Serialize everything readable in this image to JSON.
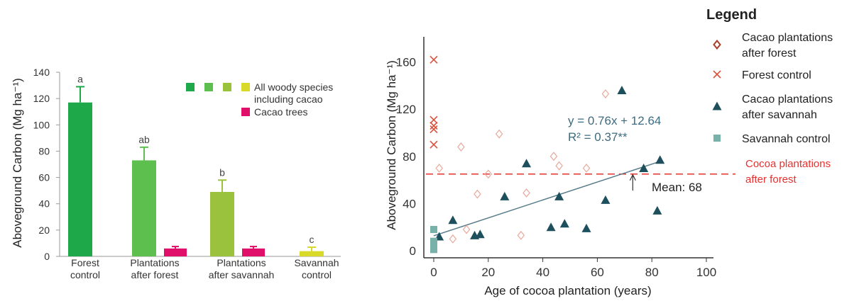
{
  "colors": {
    "forest_green": "#1fa84a",
    "plant_forest_green": "#5cbf4e",
    "plant_savannah_green": "#9bc23c",
    "savannah_yellow": "#d9d92a",
    "cacao_pink": "#e0106a",
    "cacao_forest_diamond": "#e8a89a",
    "forest_control_x": "#d9533c",
    "savannah_triangle": "#1d4f5c",
    "savannah_control_square": "#78b0aa",
    "dashed_red": "#e8302f",
    "regression_line": "#5a7d8a"
  },
  "chart_data": [
    {
      "type": "bar",
      "ylabel": "Aboveground Carbon (Mg ha⁻¹)",
      "ylim": [
        0,
        140
      ],
      "yticks": [
        "0",
        "20",
        "40",
        "60",
        "80",
        "100",
        "120",
        "140"
      ],
      "categories": [
        [
          "Forest",
          "control"
        ],
        [
          "Plantations",
          "after forest"
        ],
        [
          "Plantations",
          "after savannah"
        ],
        [
          "Savannah",
          "control"
        ]
      ],
      "significance_letters": [
        "a",
        "ab",
        "b",
        "c"
      ],
      "series": [
        {
          "name": "All woody species including cacao",
          "values": [
            117,
            73,
            49,
            4
          ],
          "errors": [
            12,
            10,
            9,
            3
          ]
        },
        {
          "name": "Cacao trees",
          "values": [
            null,
            6,
            6,
            null
          ],
          "errors": [
            null,
            1.5,
            1.5,
            null
          ]
        }
      ],
      "legend": [
        {
          "label_lines": [
            "All woody species",
            "including cacao"
          ]
        },
        {
          "label_lines": [
            "Cacao trees"
          ]
        }
      ]
    },
    {
      "type": "scatter",
      "xlabel": "Age of cocoa plantation (years)",
      "ylabel": "Aboveground Carbon (Mg ha⁻¹)",
      "xlim": [
        -1,
        103
      ],
      "ylim": [
        -4,
        172
      ],
      "xticks": [
        "0",
        "20",
        "40",
        "60",
        "80",
        "100"
      ],
      "yticks": [
        "0",
        "40",
        "80",
        "120",
        "160"
      ],
      "equation": "y = 0.76x + 12.64",
      "r2": "R² = 0.37**",
      "mean_label": "Mean: 68",
      "dashed_label_lines": [
        "Cocoa plantations",
        "after forest"
      ],
      "dashed_y": 65,
      "regression": {
        "slope": 0.76,
        "intercept": 12.64,
        "x_start": 0,
        "x_end": 83
      },
      "mean_arrow": {
        "x": 73,
        "y_from": 51,
        "y_to": 65
      },
      "legend_title": "Legend",
      "series": [
        {
          "name": "Cacao plantations after forest",
          "legend_lines": [
            "Cacao plantations",
            "after forest"
          ],
          "marker": "diamond",
          "points": [
            [
              2,
              70
            ],
            [
              7,
              10
            ],
            [
              10,
              88
            ],
            [
              12,
              18
            ],
            [
              16,
              48
            ],
            [
              20,
              65
            ],
            [
              24,
              99
            ],
            [
              32,
              13
            ],
            [
              34,
              49
            ],
            [
              44,
              80
            ],
            [
              46,
              72
            ],
            [
              56,
              70
            ],
            [
              63,
              133
            ]
          ]
        },
        {
          "name": "Forest control",
          "legend_lines": [
            "Forest control"
          ],
          "marker": "x",
          "points": [
            [
              0,
              162
            ],
            [
              0,
              111
            ],
            [
              0,
              106
            ],
            [
              0,
              103
            ],
            [
              0,
              90
            ]
          ]
        },
        {
          "name": "Cacao plantations after savannah",
          "legend_lines": [
            "Cacao plantations",
            "after savannah"
          ],
          "marker": "triangle",
          "points": [
            [
              2,
              12
            ],
            [
              7,
              26
            ],
            [
              15,
              13
            ],
            [
              17,
              14
            ],
            [
              26,
              46
            ],
            [
              34,
              74
            ],
            [
              43,
              20
            ],
            [
              46,
              46
            ],
            [
              48,
              23
            ],
            [
              56,
              19
            ],
            [
              63,
              43
            ],
            [
              69,
              136
            ],
            [
              77,
              70
            ],
            [
              83,
              77
            ],
            [
              82,
              34
            ]
          ]
        },
        {
          "name": "Savannah control",
          "legend_lines": [
            "Savannah control"
          ],
          "marker": "square",
          "points": [
            [
              0,
              18
            ],
            [
              0,
              8
            ],
            [
              0,
              4
            ],
            [
              0,
              1
            ]
          ]
        }
      ]
    }
  ]
}
